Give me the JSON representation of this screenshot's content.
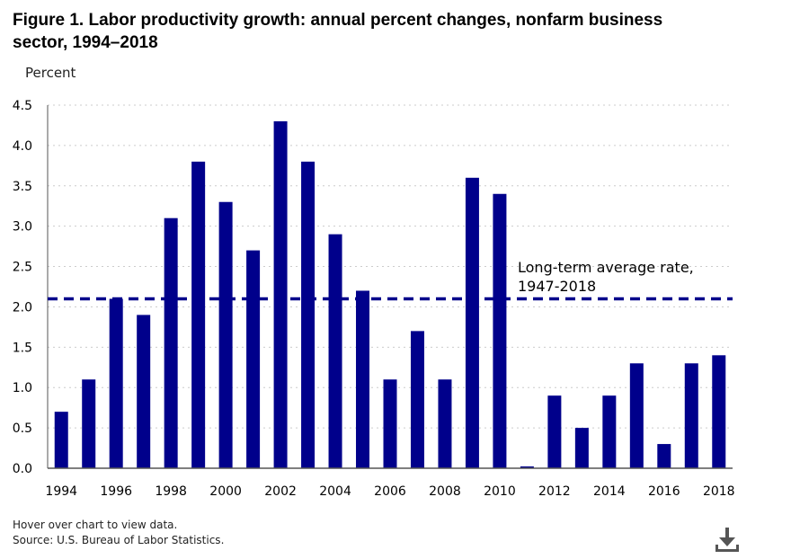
{
  "title": "Figure 1. Labor productivity growth: annual percent changes, nonfarm business sector, 1994–2018",
  "footer": {
    "hover_note": "Hover over chart to view data.",
    "source": "Source: U.S. Bureau of Labor Statistics."
  },
  "icons": {
    "download": "download-icon"
  },
  "colors": {
    "bar": "#00008b",
    "average_line": "#00008b",
    "grid": "#cccccc"
  },
  "chart_data": {
    "type": "bar",
    "ylabel": "Percent",
    "xlabel": "",
    "ylim": [
      0,
      4.5
    ],
    "yticks": [
      "0.0",
      "0.5",
      "1.0",
      "1.5",
      "2.0",
      "2.5",
      "3.0",
      "3.5",
      "4.0",
      "4.5"
    ],
    "ytick_values": [
      0,
      0.5,
      1.0,
      1.5,
      2.0,
      2.5,
      3.0,
      3.5,
      4.0,
      4.5
    ],
    "categories": [
      "1994",
      "1995",
      "1996",
      "1997",
      "1998",
      "1999",
      "2000",
      "2001",
      "2002",
      "2003",
      "2004",
      "2005",
      "2006",
      "2007",
      "2008",
      "2009",
      "2010",
      "2011",
      "2012",
      "2013",
      "2014",
      "2015",
      "2016",
      "2017",
      "2018"
    ],
    "xtick_labels": [
      "1994",
      "1996",
      "1998",
      "2000",
      "2002",
      "2004",
      "2006",
      "2008",
      "2010",
      "2012",
      "2014",
      "2016",
      "2018"
    ],
    "values": [
      0.7,
      1.1,
      2.1,
      1.9,
      3.1,
      3.8,
      3.3,
      2.7,
      4.3,
      3.8,
      2.9,
      2.2,
      1.1,
      1.7,
      1.1,
      3.6,
      3.4,
      0.0,
      0.9,
      0.5,
      0.9,
      1.3,
      0.3,
      1.3,
      1.4
    ],
    "grid": true,
    "reference_line": {
      "value": 2.1,
      "label_line1": "Long-term average rate,",
      "label_line2": "1947-2018",
      "style": "dashed"
    }
  }
}
